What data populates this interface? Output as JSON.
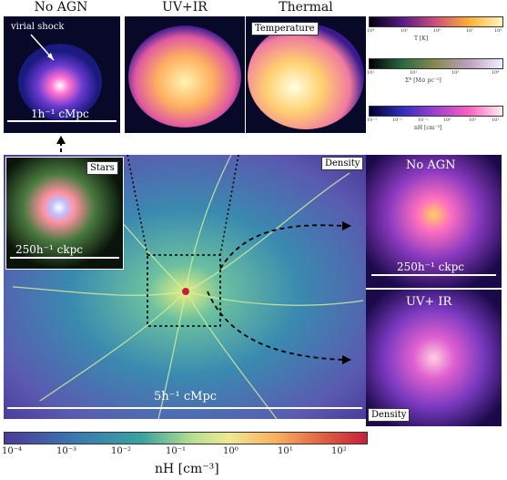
{
  "top_titles": {
    "no_agn": "No AGN",
    "uv_ir": "UV+IR",
    "thermal": "Thermal"
  },
  "top_annotations": {
    "virial_shock": "virial shock",
    "temperature": "Temperature",
    "scale": "1h⁻¹ cMpc"
  },
  "colorbars": [
    {
      "label": "T [K]",
      "ticks": [
        "10⁴",
        "10⁵",
        "10⁶",
        "10⁷",
        "10⁸"
      ]
    },
    {
      "label": "Σ* [M⊙ pc⁻²]",
      "ticks": [
        "10¹",
        "10²",
        "10³",
        "10⁴"
      ]
    },
    {
      "label": "nH [cm⁻³]",
      "ticks": [
        "10⁻³",
        "10⁻²",
        "10⁻¹",
        "10⁰",
        "10¹",
        "10²"
      ]
    }
  ],
  "main": {
    "density_label": "Density",
    "scale_label": "5h⁻¹ cMpc"
  },
  "inset": {
    "label": "Stars",
    "scale": "250h⁻¹ ckpc"
  },
  "right_panels": {
    "top_title": "No AGN",
    "top_scale": "250h⁻¹ ckpc",
    "bottom_title": "UV+ IR",
    "density_label": "Density"
  },
  "main_colorbar": {
    "ticks": [
      "10⁻⁴",
      "10⁻³",
      "10⁻²",
      "10⁻¹",
      "10⁰",
      "10¹",
      "10²"
    ],
    "label": "nH [cm⁻³]"
  },
  "colors": {
    "bg_dark": "#0b0b3a",
    "density_low": "#5a4fa8",
    "density_mid": "#3aa3a0",
    "density_high": "#f0e890",
    "density_peak": "#c81e3c"
  }
}
